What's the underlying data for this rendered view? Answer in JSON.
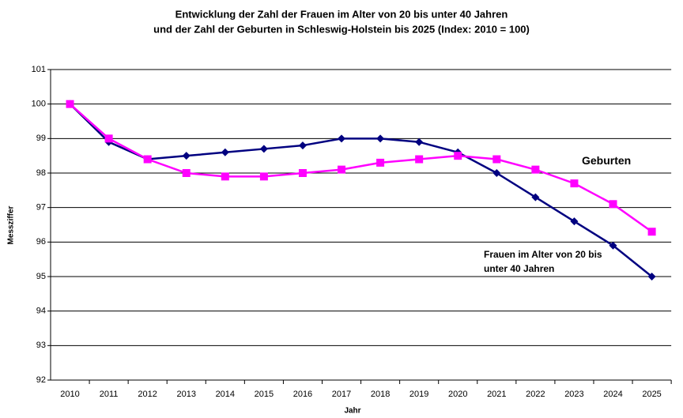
{
  "chart_data": {
    "type": "line",
    "title": "Entwicklung der Zahl der Frauen im Alter von 20 bis unter 40 Jahren",
    "subtitle": "und der Zahl der Geburten in Schleswig-Holstein bis 2025 (Index: 2010 = 100)",
    "x_label": "Jahr",
    "y_label": "Messziffer",
    "categories": [
      "2010",
      "2011",
      "2012",
      "2013",
      "2014",
      "2015",
      "2016",
      "2017",
      "2018",
      "2019",
      "2020",
      "2021",
      "2022",
      "2023",
      "2024",
      "2025"
    ],
    "series": [
      {
        "name": "Frauen im Alter von 20 bis unter 40 Jahren",
        "color": "#000080",
        "marker": "diamond",
        "values": [
          100,
          98.9,
          98.4,
          98.5,
          98.6,
          98.7,
          98.8,
          99.0,
          99.0,
          98.9,
          98.6,
          98.0,
          97.3,
          96.6,
          95.9,
          95.0
        ]
      },
      {
        "name": "Geburten",
        "color": "#ff00ff",
        "marker": "square",
        "values": [
          100,
          99.0,
          98.4,
          98.0,
          97.9,
          97.9,
          98.0,
          98.1,
          98.3,
          98.4,
          98.5,
          98.4,
          98.1,
          97.7,
          97.1,
          96.3
        ]
      }
    ],
    "ylim": [
      92,
      101
    ],
    "yticks": [
      92,
      93,
      94,
      95,
      96,
      97,
      98,
      99,
      100,
      101
    ],
    "grid": true
  }
}
